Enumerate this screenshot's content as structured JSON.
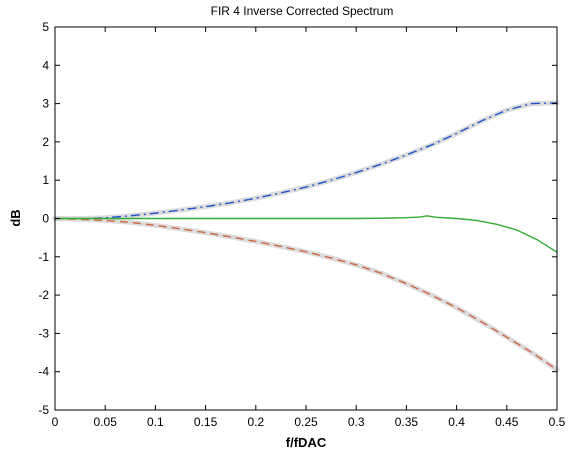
{
  "chart_data": {
    "type": "line",
    "title": "FIR 4 Inverse Corrected Spectrum",
    "xlabel": "f/fDAC",
    "ylabel": "dB",
    "xlim": [
      0,
      0.5
    ],
    "ylim": [
      -5,
      5
    ],
    "xticks": [
      "0",
      "0.05",
      "0.1",
      "0.15",
      "0.2",
      "0.25",
      "0.3",
      "0.35",
      "0.4",
      "0.45",
      "0.5"
    ],
    "yticks": [
      "5",
      "4",
      "3",
      "2",
      "1",
      "0",
      "-1",
      "-2",
      "-3",
      "-4",
      "-5"
    ],
    "grid": false,
    "legend": "none",
    "series": [
      {
        "color": "#2255cc",
        "dash": "dashdot",
        "halo": true,
        "x": [
          0,
          0.025,
          0.05,
          0.075,
          0.1,
          0.125,
          0.15,
          0.175,
          0.2,
          0.225,
          0.25,
          0.275,
          0.3,
          0.325,
          0.35,
          0.375,
          0.4,
          0.425,
          0.45,
          0.475,
          0.5
        ],
        "y": [
          0,
          0,
          0.02,
          0.07,
          0.14,
          0.22,
          0.31,
          0.41,
          0.53,
          0.67,
          0.82,
          1.0,
          1.2,
          1.42,
          1.66,
          1.92,
          2.22,
          2.55,
          2.83,
          3.0,
          3.02
        ]
      },
      {
        "color": "#cc6644",
        "dash": "dashed",
        "halo": true,
        "x": [
          0,
          0.025,
          0.05,
          0.075,
          0.1,
          0.125,
          0.15,
          0.175,
          0.2,
          0.225,
          0.25,
          0.275,
          0.3,
          0.325,
          0.35,
          0.375,
          0.4,
          0.425,
          0.45,
          0.475,
          0.5
        ],
        "y": [
          0,
          -0.02,
          -0.05,
          -0.1,
          -0.18,
          -0.27,
          -0.37,
          -0.48,
          -0.6,
          -0.73,
          -0.87,
          -1.03,
          -1.21,
          -1.43,
          -1.7,
          -2.0,
          -2.33,
          -2.7,
          -3.1,
          -3.5,
          -3.95
        ]
      },
      {
        "color": "#33aa33",
        "dash": "solid",
        "halo": false,
        "x": [
          0,
          0.05,
          0.1,
          0.15,
          0.2,
          0.25,
          0.3,
          0.33,
          0.35,
          0.365,
          0.37,
          0.38,
          0.4,
          0.42,
          0.44,
          0.46,
          0.48,
          0.5
        ],
        "y": [
          0,
          0,
          0,
          0,
          0,
          0,
          0,
          0.01,
          0.02,
          0.04,
          0.07,
          0.03,
          0.0,
          -0.05,
          -0.15,
          -0.3,
          -0.55,
          -0.88
        ]
      }
    ]
  }
}
